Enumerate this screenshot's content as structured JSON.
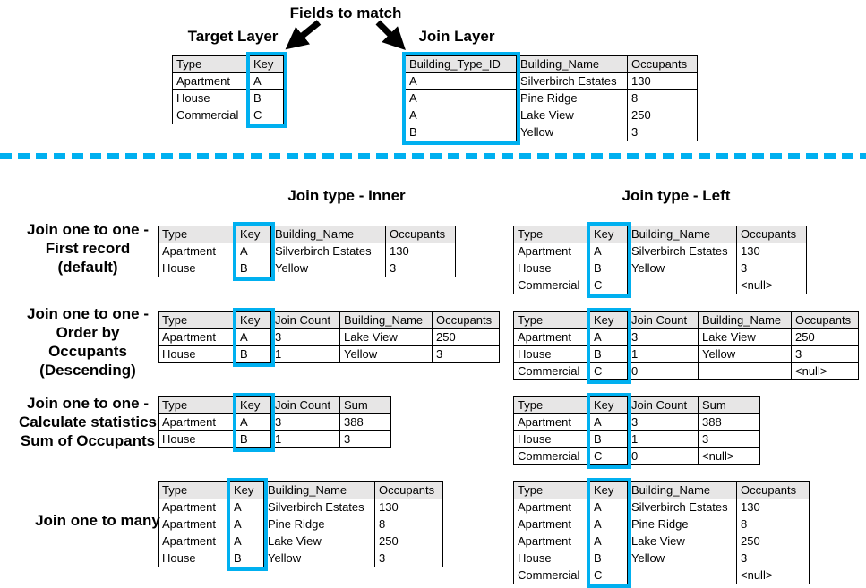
{
  "titles": {
    "fields_to_match": "Fields to match",
    "target_layer": "Target Layer",
    "join_layer": "Join Layer",
    "join_type_inner": "Join type - Inner",
    "join_type_left": "Join type - Left"
  },
  "row_labels": {
    "first_record": {
      "lines": [
        "Join one to one -",
        "First record",
        "(default)"
      ]
    },
    "order_by": {
      "lines": [
        "Join one to one -",
        "Order by",
        "Occupants",
        "(Descending)"
      ]
    },
    "statistics": {
      "lines": [
        "Join one to one -",
        "Calculate statistics",
        "Sum of Occupants"
      ]
    },
    "one_to_many": {
      "lines": [
        "Join one to many"
      ]
    }
  },
  "colors": {
    "accent_cyan": "#00b0f0",
    "header_bg": "#e7e6e6",
    "table_border": "#000000",
    "arrow_black": "#000000"
  },
  "tables": {
    "target": {
      "headers": [
        "Type",
        "Key"
      ],
      "key_col": 1,
      "rows": [
        [
          "Apartment",
          "A"
        ],
        [
          "House",
          "B"
        ],
        [
          "Commercial",
          "C"
        ]
      ]
    },
    "join": {
      "headers": [
        "Building_Type_ID",
        "Building_Name",
        "Occupants"
      ],
      "key_col": 0,
      "rows": [
        [
          "A",
          "Silverbirch Estates",
          "130"
        ],
        [
          "A",
          "Pine Ridge",
          "8"
        ],
        [
          "A",
          "Lake View",
          "250"
        ],
        [
          "B",
          "Yellow",
          "3"
        ]
      ]
    },
    "inner_first": {
      "headers": [
        "Type",
        "Key",
        "Building_Name",
        "Occupants"
      ],
      "key_col": 1,
      "rows": [
        [
          "Apartment",
          "A",
          "Silverbirch Estates",
          "130"
        ],
        [
          "House",
          "B",
          "Yellow",
          "3"
        ]
      ]
    },
    "left_first": {
      "headers": [
        "Type",
        "Key",
        "Building_Name",
        "Occupants"
      ],
      "key_col": 1,
      "rows": [
        [
          "Apartment",
          "A",
          "Silverbirch Estates",
          "130"
        ],
        [
          "House",
          "B",
          "Yellow",
          "3"
        ],
        [
          "Commercial",
          "C",
          "",
          "<null>"
        ]
      ]
    },
    "inner_order": {
      "headers": [
        "Type",
        "Key",
        "Join Count",
        "Building_Name",
        "Occupants"
      ],
      "key_col": 1,
      "rows": [
        [
          "Apartment",
          "A",
          "3",
          "Lake View",
          "250"
        ],
        [
          "House",
          "B",
          "1",
          "Yellow",
          "3"
        ]
      ]
    },
    "left_order": {
      "headers": [
        "Type",
        "Key",
        "Join Count",
        "Building_Name",
        "Occupants"
      ],
      "key_col": 1,
      "rows": [
        [
          "Apartment",
          "A",
          "3",
          "Lake View",
          "250"
        ],
        [
          "House",
          "B",
          "1",
          "Yellow",
          "3"
        ],
        [
          "Commercial",
          "C",
          "0",
          "",
          "<null>"
        ]
      ]
    },
    "inner_stats": {
      "headers": [
        "Type",
        "Key",
        "Join Count",
        "Sum"
      ],
      "key_col": 1,
      "rows": [
        [
          "Apartment",
          "A",
          "3",
          "388"
        ],
        [
          "House",
          "B",
          "1",
          "3"
        ]
      ]
    },
    "left_stats": {
      "headers": [
        "Type",
        "Key",
        "Join Count",
        "Sum"
      ],
      "key_col": 1,
      "rows": [
        [
          "Apartment",
          "A",
          "3",
          "388"
        ],
        [
          "House",
          "B",
          "1",
          "3"
        ],
        [
          "Commercial",
          "C",
          "0",
          "<null>"
        ]
      ]
    },
    "inner_many": {
      "headers": [
        "Type",
        "Key",
        "Building_Name",
        "Occupants"
      ],
      "key_col": 1,
      "rows": [
        [
          "Apartment",
          "A",
          "Silverbirch Estates",
          "130"
        ],
        [
          "Apartment",
          "A",
          "Pine Ridge",
          "8"
        ],
        [
          "Apartment",
          "A",
          "Lake View",
          "250"
        ],
        [
          "House",
          "B",
          "Yellow",
          "3"
        ]
      ]
    },
    "left_many": {
      "headers": [
        "Type",
        "Key",
        "Building_Name",
        "Occupants"
      ],
      "key_col": 1,
      "rows": [
        [
          "Apartment",
          "A",
          "Silverbirch Estates",
          "130"
        ],
        [
          "Apartment",
          "A",
          "Pine Ridge",
          "8"
        ],
        [
          "Apartment",
          "A",
          "Lake View",
          "250"
        ],
        [
          "House",
          "B",
          "Yellow",
          "3"
        ],
        [
          "Commercial",
          "C",
          "",
          "<null>"
        ]
      ]
    }
  }
}
